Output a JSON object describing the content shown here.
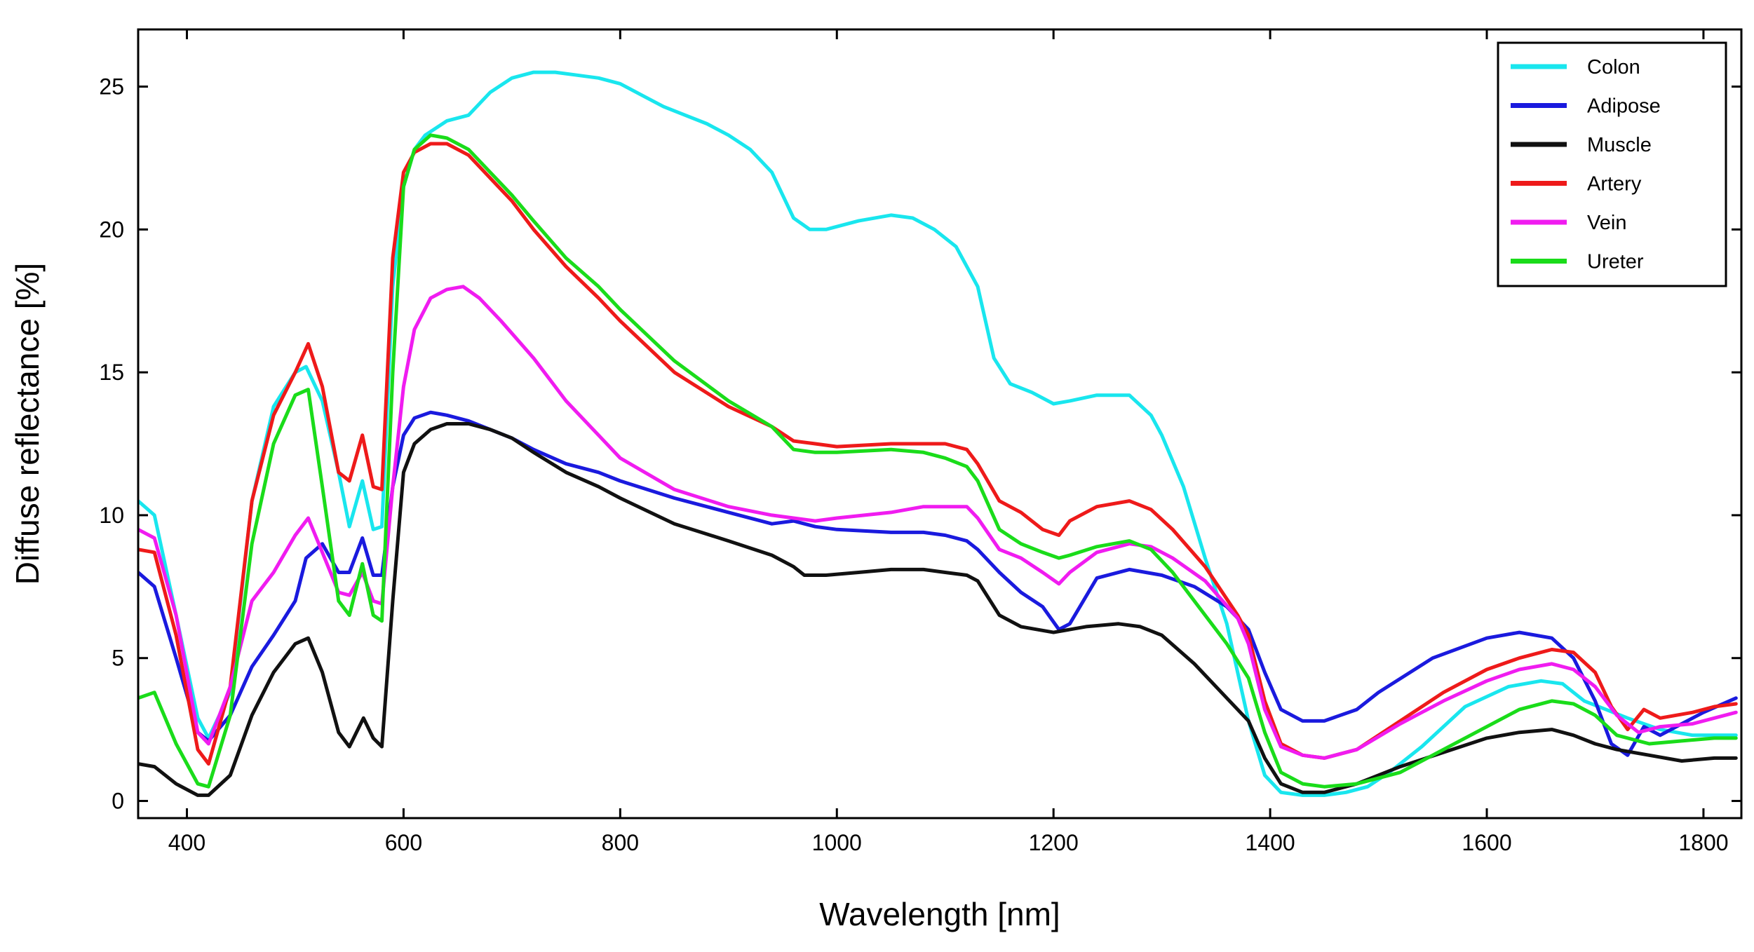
{
  "chart_data": {
    "type": "line",
    "title": "",
    "xlabel": "Wavelength [nm]",
    "ylabel": "Diffuse reflectance [%]",
    "xlim": [
      355,
      1835
    ],
    "ylim": [
      -0.6,
      27
    ],
    "xticks": [
      400,
      600,
      800,
      1000,
      1200,
      1400,
      1600,
      1800
    ],
    "yticks": [
      0,
      5,
      10,
      15,
      20,
      25
    ],
    "grid": false,
    "legend_position": "top-right",
    "series": [
      {
        "name": "Colon",
        "color": "#19e6ee",
        "x": [
          355,
          370,
          390,
          410,
          420,
          440,
          460,
          480,
          500,
          510,
          525,
          540,
          550,
          562,
          572,
          580,
          590,
          600,
          610,
          620,
          640,
          660,
          680,
          700,
          720,
          740,
          760,
          780,
          800,
          820,
          840,
          860,
          880,
          900,
          920,
          940,
          960,
          975,
          990,
          1020,
          1050,
          1070,
          1090,
          1110,
          1130,
          1145,
          1160,
          1180,
          1200,
          1215,
          1240,
          1270,
          1290,
          1300,
          1320,
          1340,
          1360,
          1380,
          1395,
          1410,
          1430,
          1450,
          1470,
          1490,
          1510,
          1540,
          1580,
          1620,
          1650,
          1670,
          1690,
          1710,
          1730,
          1760,
          1790,
          1810,
          1830
        ],
        "y": [
          10.5,
          10.0,
          6.5,
          2.9,
          2.2,
          3.8,
          10.5,
          13.8,
          15.0,
          15.2,
          14.0,
          11.5,
          9.6,
          11.2,
          9.5,
          9.6,
          18.0,
          21.5,
          22.8,
          23.3,
          23.8,
          24.0,
          24.8,
          25.3,
          25.5,
          25.5,
          25.4,
          25.3,
          25.1,
          24.7,
          24.3,
          24.0,
          23.7,
          23.3,
          22.8,
          22.0,
          20.4,
          20.0,
          20.0,
          20.3,
          20.5,
          20.4,
          20.0,
          19.4,
          18.0,
          15.5,
          14.6,
          14.3,
          13.9,
          14.0,
          14.2,
          14.2,
          13.5,
          12.8,
          11.0,
          8.5,
          6.2,
          2.8,
          0.9,
          0.3,
          0.2,
          0.2,
          0.3,
          0.5,
          1.0,
          1.9,
          3.3,
          4.0,
          4.2,
          4.1,
          3.5,
          3.2,
          2.9,
          2.5,
          2.3,
          2.3,
          2.3
        ]
      },
      {
        "name": "Adipose",
        "color": "#1a1ade",
        "x": [
          355,
          370,
          390,
          410,
          420,
          440,
          460,
          480,
          500,
          510,
          525,
          540,
          550,
          562,
          572,
          580,
          590,
          600,
          610,
          625,
          640,
          660,
          680,
          700,
          720,
          750,
          780,
          800,
          850,
          900,
          940,
          960,
          980,
          1000,
          1050,
          1080,
          1100,
          1120,
          1130,
          1150,
          1170,
          1190,
          1205,
          1215,
          1240,
          1270,
          1300,
          1330,
          1360,
          1380,
          1395,
          1410,
          1430,
          1450,
          1480,
          1500,
          1550,
          1600,
          1630,
          1660,
          1680,
          1700,
          1715,
          1730,
          1745,
          1760,
          1780,
          1800,
          1830
        ],
        "y": [
          8.0,
          7.5,
          5.0,
          2.4,
          2.1,
          3.0,
          4.7,
          5.8,
          7.0,
          8.5,
          9.0,
          8.0,
          8.0,
          9.2,
          7.9,
          7.9,
          11.0,
          12.8,
          13.4,
          13.6,
          13.5,
          13.3,
          13.0,
          12.7,
          12.3,
          11.8,
          11.5,
          11.2,
          10.6,
          10.1,
          9.7,
          9.8,
          9.6,
          9.5,
          9.4,
          9.4,
          9.3,
          9.1,
          8.8,
          8.0,
          7.3,
          6.8,
          6.0,
          6.2,
          7.8,
          8.1,
          7.9,
          7.5,
          6.8,
          6.0,
          4.5,
          3.2,
          2.8,
          2.8,
          3.2,
          3.8,
          5.0,
          5.7,
          5.9,
          5.7,
          5.0,
          3.5,
          2.0,
          1.6,
          2.6,
          2.3,
          2.7,
          3.1,
          3.6
        ]
      },
      {
        "name": "Muscle",
        "color": "#111111",
        "x": [
          355,
          370,
          390,
          410,
          420,
          440,
          460,
          480,
          500,
          512,
          525,
          540,
          550,
          563,
          572,
          580,
          590,
          600,
          610,
          625,
          640,
          660,
          680,
          700,
          720,
          750,
          780,
          800,
          850,
          900,
          940,
          960,
          970,
          990,
          1020,
          1050,
          1080,
          1100,
          1120,
          1130,
          1150,
          1170,
          1200,
          1230,
          1260,
          1280,
          1300,
          1330,
          1360,
          1380,
          1395,
          1410,
          1430,
          1450,
          1480,
          1520,
          1560,
          1600,
          1630,
          1660,
          1680,
          1700,
          1720,
          1750,
          1780,
          1810,
          1830
        ],
        "y": [
          1.3,
          1.2,
          0.6,
          0.2,
          0.2,
          0.9,
          3.0,
          4.5,
          5.5,
          5.7,
          4.5,
          2.4,
          1.9,
          2.9,
          2.2,
          1.9,
          7.0,
          11.5,
          12.5,
          13.0,
          13.2,
          13.2,
          13.0,
          12.7,
          12.2,
          11.5,
          11.0,
          10.6,
          9.7,
          9.1,
          8.6,
          8.2,
          7.9,
          7.9,
          8.0,
          8.1,
          8.1,
          8.0,
          7.9,
          7.7,
          6.5,
          6.1,
          5.9,
          6.1,
          6.2,
          6.1,
          5.8,
          4.8,
          3.6,
          2.8,
          1.5,
          0.6,
          0.3,
          0.3,
          0.6,
          1.2,
          1.7,
          2.2,
          2.4,
          2.5,
          2.3,
          2.0,
          1.8,
          1.6,
          1.4,
          1.5,
          1.5
        ]
      },
      {
        "name": "Artery",
        "color": "#ee1a1a",
        "x": [
          355,
          370,
          390,
          410,
          420,
          440,
          460,
          480,
          500,
          512,
          525,
          540,
          550,
          562,
          572,
          580,
          590,
          600,
          610,
          625,
          640,
          660,
          680,
          700,
          720,
          750,
          780,
          800,
          850,
          900,
          940,
          960,
          980,
          1000,
          1050,
          1080,
          1100,
          1120,
          1130,
          1150,
          1170,
          1190,
          1205,
          1215,
          1240,
          1270,
          1290,
          1310,
          1340,
          1370,
          1380,
          1395,
          1410,
          1430,
          1450,
          1480,
          1520,
          1560,
          1600,
          1630,
          1660,
          1680,
          1700,
          1715,
          1730,
          1745,
          1760,
          1790,
          1810,
          1830
        ],
        "y": [
          8.8,
          8.7,
          5.8,
          1.8,
          1.3,
          4.0,
          10.5,
          13.5,
          15.0,
          16.0,
          14.5,
          11.5,
          11.2,
          12.8,
          11.0,
          10.9,
          19.0,
          22.0,
          22.7,
          23.0,
          23.0,
          22.6,
          21.8,
          21.0,
          20.0,
          18.7,
          17.6,
          16.8,
          15.0,
          13.8,
          13.1,
          12.6,
          12.5,
          12.4,
          12.5,
          12.5,
          12.5,
          12.3,
          11.8,
          10.5,
          10.1,
          9.5,
          9.3,
          9.8,
          10.3,
          10.5,
          10.2,
          9.5,
          8.2,
          6.5,
          5.8,
          3.5,
          2.0,
          1.6,
          1.5,
          1.8,
          2.8,
          3.8,
          4.6,
          5.0,
          5.3,
          5.2,
          4.5,
          3.3,
          2.5,
          3.2,
          2.9,
          3.1,
          3.3,
          3.4
        ]
      },
      {
        "name": "Vein",
        "color": "#f01cf0",
        "x": [
          355,
          370,
          390,
          410,
          420,
          440,
          460,
          480,
          500,
          512,
          525,
          540,
          550,
          562,
          572,
          580,
          590,
          600,
          610,
          625,
          640,
          655,
          670,
          690,
          720,
          750,
          780,
          800,
          850,
          900,
          940,
          960,
          980,
          1000,
          1050,
          1080,
          1100,
          1120,
          1130,
          1150,
          1170,
          1190,
          1205,
          1215,
          1240,
          1270,
          1290,
          1310,
          1340,
          1370,
          1380,
          1395,
          1410,
          1430,
          1450,
          1480,
          1520,
          1560,
          1600,
          1630,
          1660,
          1680,
          1700,
          1720,
          1740,
          1760,
          1790,
          1810,
          1830
        ],
        "y": [
          9.5,
          9.2,
          6.5,
          2.4,
          2.0,
          4.0,
          7.0,
          8.0,
          9.3,
          9.9,
          8.7,
          7.3,
          7.2,
          8.0,
          7.0,
          6.9,
          11.0,
          14.5,
          16.5,
          17.6,
          17.9,
          18.0,
          17.6,
          16.8,
          15.5,
          14.0,
          12.8,
          12.0,
          10.9,
          10.3,
          10.0,
          9.9,
          9.8,
          9.9,
          10.1,
          10.3,
          10.3,
          10.3,
          9.9,
          8.8,
          8.5,
          8.0,
          7.6,
          8.0,
          8.7,
          9.0,
          8.9,
          8.5,
          7.7,
          6.4,
          5.5,
          3.2,
          1.9,
          1.6,
          1.5,
          1.8,
          2.7,
          3.5,
          4.2,
          4.6,
          4.8,
          4.6,
          4.0,
          3.0,
          2.4,
          2.6,
          2.7,
          2.9,
          3.1
        ]
      },
      {
        "name": "Ureter",
        "color": "#1adc1a",
        "x": [
          355,
          370,
          390,
          410,
          420,
          440,
          460,
          480,
          500,
          512,
          525,
          540,
          550,
          562,
          572,
          580,
          590,
          600,
          610,
          625,
          640,
          660,
          680,
          700,
          720,
          750,
          780,
          800,
          850,
          900,
          940,
          960,
          980,
          1000,
          1050,
          1080,
          1100,
          1120,
          1130,
          1150,
          1170,
          1190,
          1205,
          1215,
          1240,
          1270,
          1290,
          1310,
          1340,
          1360,
          1380,
          1395,
          1410,
          1430,
          1450,
          1480,
          1520,
          1560,
          1600,
          1630,
          1660,
          1680,
          1700,
          1720,
          1750,
          1780,
          1810,
          1830
        ],
        "y": [
          3.6,
          3.8,
          2.0,
          0.6,
          0.5,
          3.0,
          9.0,
          12.5,
          14.2,
          14.4,
          11.0,
          7.0,
          6.5,
          8.3,
          6.5,
          6.3,
          15.0,
          21.5,
          22.8,
          23.3,
          23.2,
          22.8,
          22.0,
          21.2,
          20.3,
          19.0,
          18.0,
          17.2,
          15.4,
          14.0,
          13.1,
          12.3,
          12.2,
          12.2,
          12.3,
          12.2,
          12.0,
          11.7,
          11.2,
          9.5,
          9.0,
          8.7,
          8.5,
          8.6,
          8.9,
          9.1,
          8.8,
          8.0,
          6.5,
          5.5,
          4.3,
          2.4,
          1.0,
          0.6,
          0.5,
          0.6,
          1.0,
          1.8,
          2.6,
          3.2,
          3.5,
          3.4,
          3.0,
          2.3,
          2.0,
          2.1,
          2.2,
          2.2
        ]
      }
    ]
  }
}
